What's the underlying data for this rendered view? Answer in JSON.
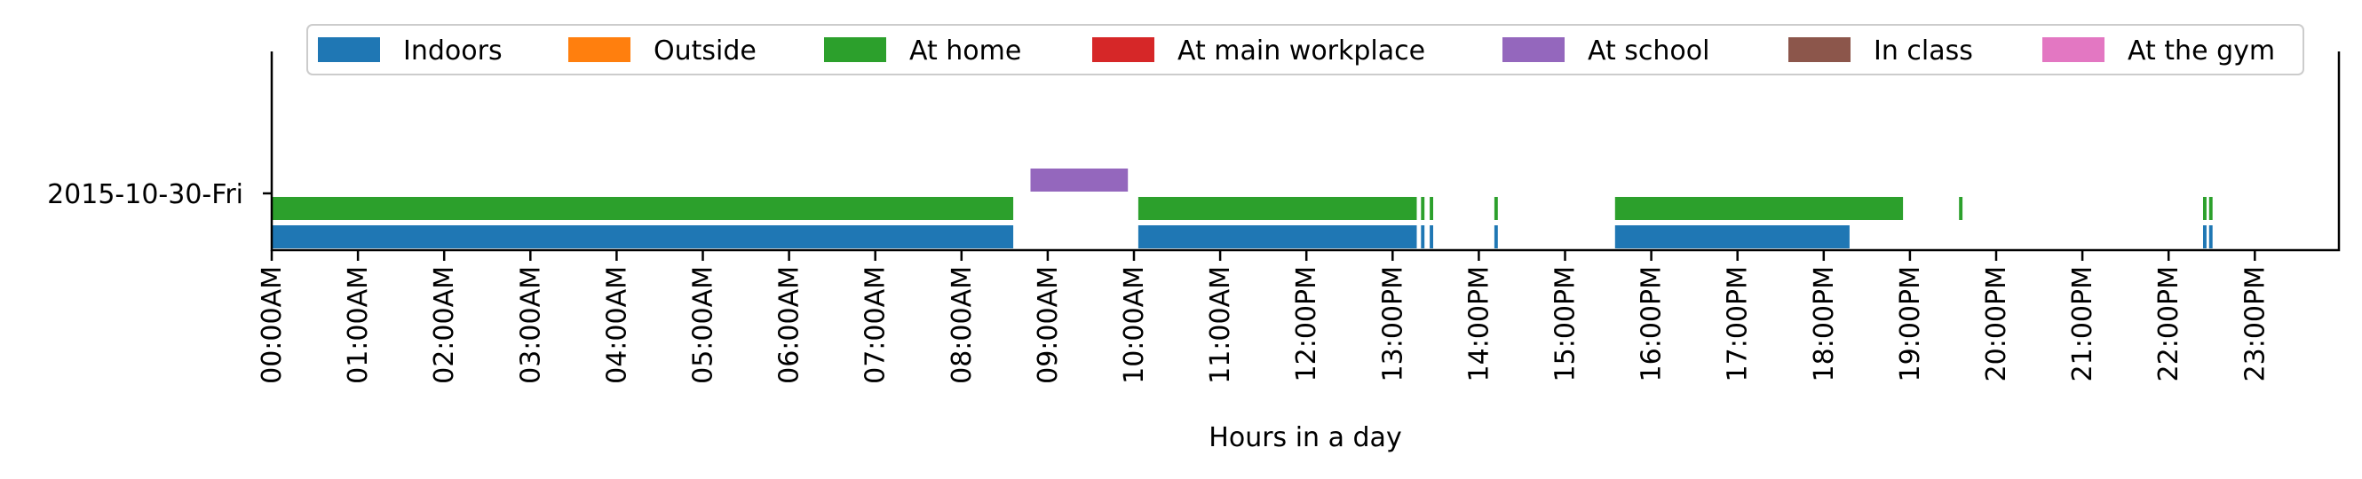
{
  "chart_data": {
    "type": "timeline",
    "xlabel": "Hours in a day",
    "x_unit": "hours",
    "xlim": [
      0,
      24
    ],
    "y_categories": [
      "2015-10-30-Fri"
    ],
    "x_ticks": [
      {
        "value": 0,
        "label": "00:00AM"
      },
      {
        "value": 1,
        "label": "01:00AM"
      },
      {
        "value": 2,
        "label": "02:00AM"
      },
      {
        "value": 3,
        "label": "03:00AM"
      },
      {
        "value": 4,
        "label": "04:00AM"
      },
      {
        "value": 5,
        "label": "05:00AM"
      },
      {
        "value": 6,
        "label": "06:00AM"
      },
      {
        "value": 7,
        "label": "07:00AM"
      },
      {
        "value": 8,
        "label": "08:00AM"
      },
      {
        "value": 9,
        "label": "09:00AM"
      },
      {
        "value": 10,
        "label": "10:00AM"
      },
      {
        "value": 11,
        "label": "11:00AM"
      },
      {
        "value": 12,
        "label": "12:00PM"
      },
      {
        "value": 13,
        "label": "13:00PM"
      },
      {
        "value": 14,
        "label": "14:00PM"
      },
      {
        "value": 15,
        "label": "15:00PM"
      },
      {
        "value": 16,
        "label": "16:00PM"
      },
      {
        "value": 17,
        "label": "17:00PM"
      },
      {
        "value": 18,
        "label": "18:00PM"
      },
      {
        "value": 19,
        "label": "19:00PM"
      },
      {
        "value": 20,
        "label": "20:00PM"
      },
      {
        "value": 21,
        "label": "21:00PM"
      },
      {
        "value": 22,
        "label": "22:00PM"
      },
      {
        "value": 23,
        "label": "23:00PM"
      }
    ],
    "legend_position": "top",
    "series": [
      {
        "name": "Indoors",
        "color": "#1f77b4",
        "intervals": [
          [
            0.0,
            8.6
          ],
          [
            10.05,
            13.28
          ],
          [
            13.33,
            13.37
          ],
          [
            13.43,
            13.47
          ],
          [
            14.18,
            14.22
          ],
          [
            15.58,
            18.3
          ],
          [
            22.4,
            22.44
          ],
          [
            22.47,
            22.51
          ]
        ]
      },
      {
        "name": "Outside",
        "color": "#ff7f0e",
        "intervals": []
      },
      {
        "name": "At home",
        "color": "#2ca02c",
        "intervals": [
          [
            0.0,
            8.6
          ],
          [
            10.05,
            13.28
          ],
          [
            13.33,
            13.37
          ],
          [
            13.43,
            13.47
          ],
          [
            14.18,
            14.22
          ],
          [
            15.58,
            18.92
          ],
          [
            19.57,
            19.61
          ],
          [
            22.4,
            22.44
          ],
          [
            22.47,
            22.51
          ]
        ]
      },
      {
        "name": "At main workplace",
        "color": "#d62728",
        "intervals": []
      },
      {
        "name": "At school",
        "color": "#9467bd",
        "intervals": [
          [
            8.8,
            9.93
          ]
        ]
      },
      {
        "name": "In class",
        "color": "#8c564b",
        "intervals": []
      },
      {
        "name": "At the gym",
        "color": "#e377c2",
        "intervals": []
      }
    ]
  }
}
